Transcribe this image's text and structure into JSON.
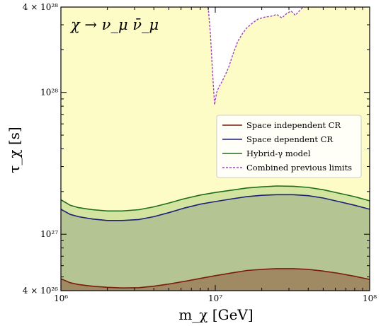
{
  "chart_data": {
    "type": "area",
    "annotation": "χ → ν_μ ν̄_μ",
    "xlabel": "m_χ [GeV]",
    "ylabel": "τ_χ [s]",
    "xscale": "log",
    "yscale": "log",
    "xlim": [
      1000000,
      100000000
    ],
    "ylim": [
      4e+26,
      4e+28
    ],
    "x_tick_labels": [
      "10⁶",
      "10⁷",
      "10⁸"
    ],
    "y_tick_labels": [
      "4 × 10²⁶",
      "10²⁷",
      "10²⁸",
      "4 × 10²⁸"
    ],
    "legend_position": "right",
    "x": [
      1000000,
      1150000,
      1300000,
      1600000,
      2000000,
      2500000,
      3200000,
      4000000,
      5000000,
      6300000,
      8000000,
      10000000,
      13000000,
      16000000,
      20000000,
      25000000,
      32000000,
      40000000,
      50000000,
      63000000,
      80000000,
      100000000
    ],
    "series": [
      {
        "name": "Space independent CR",
        "color": "#7a1c0e",
        "fill": "#a08a63",
        "values": [
          4.85e+26,
          4.55e+26,
          4.42e+26,
          4.3e+26,
          4.22e+26,
          4.18e+26,
          4.2e+26,
          4.3e+26,
          4.45e+26,
          4.65e+26,
          4.88e+26,
          5.1e+26,
          5.35e+26,
          5.55e+26,
          5.65e+26,
          5.72e+26,
          5.72e+26,
          5.65e+26,
          5.5e+26,
          5.3e+26,
          5.05e+26,
          4.8e+26
        ]
      },
      {
        "name": "Space dependent CR",
        "color": "#1c1f7a",
        "fill": "#b5c493",
        "values": [
          1.5e+27,
          1.38e+27,
          1.33e+27,
          1.28e+27,
          1.25e+27,
          1.25e+27,
          1.27e+27,
          1.33e+27,
          1.42e+27,
          1.53e+27,
          1.63e+27,
          1.7e+27,
          1.78e+27,
          1.84e+27,
          1.88e+27,
          1.9e+27,
          1.9e+27,
          1.87e+27,
          1.8e+27,
          1.7e+27,
          1.6e+27,
          1.5e+27
        ]
      },
      {
        "name": "Hybrid-γ model",
        "color": "#1f6e1c",
        "fill": "#d2e4a0",
        "values": [
          1.75e+27,
          1.6e+27,
          1.54e+27,
          1.49e+27,
          1.46e+27,
          1.46e+27,
          1.49e+27,
          1.56e+27,
          1.66e+27,
          1.78e+27,
          1.89e+27,
          1.97e+27,
          2.05e+27,
          2.12e+27,
          2.16e+27,
          2.19e+27,
          2.18e+27,
          2.14e+27,
          2.06e+27,
          1.95e+27,
          1.84e+27,
          1.72e+27
        ]
      }
    ],
    "previous_limits": {
      "name": "Combined previous limits",
      "color": "#a040c0",
      "style": "dashed",
      "x": [
        9000000,
        9300000,
        9600000,
        9900000,
        10200000,
        10600000,
        11000000,
        11500000,
        12200000,
        13000000,
        14000000,
        15000000,
        16000000,
        17500000,
        19000000,
        21000000,
        23000000,
        25000000,
        27000000,
        29000000,
        31000000,
        33000000,
        35000000,
        37000000
      ],
      "values": [
        4e+28,
        2.6e+28,
        1.4e+28,
        8.2e+27,
        1e+28,
        1.1e+28,
        1.18e+28,
        1.3e+28,
        1.5e+28,
        1.85e+28,
        2.3e+28,
        2.6e+28,
        2.85e+28,
        3.1e+28,
        3.3e+28,
        3.4e+28,
        3.45e+28,
        3.55e+28,
        3.35e+28,
        3.6e+28,
        3.75e+28,
        3.5e+28,
        3.75e+28,
        4e+28
      ]
    },
    "colors": {
      "excluded_fill": "#fdfcc6",
      "previous_fill": "#ffffff"
    }
  }
}
